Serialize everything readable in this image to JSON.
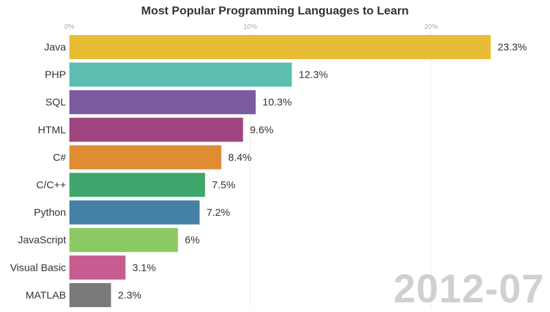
{
  "chart_data": {
    "type": "bar",
    "orientation": "horizontal",
    "title": "Most Popular Programming Languages to Learn",
    "period": "2012-07",
    "xlim": [
      0,
      25
    ],
    "ticks": [
      0,
      10,
      20
    ],
    "tick_labels": [
      "0%",
      "10%",
      "20%"
    ],
    "categories": [
      "Java",
      "PHP",
      "SQL",
      "HTML",
      "C#",
      "C/C++",
      "Python",
      "JavaScript",
      "Visual Basic",
      "MATLAB"
    ],
    "values": [
      23.3,
      12.3,
      10.3,
      9.6,
      8.4,
      7.5,
      7.2,
      6,
      3.1,
      2.3
    ],
    "value_labels": [
      "23.3%",
      "12.3%",
      "10.3%",
      "9.6%",
      "8.4%",
      "7.5%",
      "7.2%",
      "6%",
      "3.1%",
      "2.3%"
    ],
    "colors": [
      "#e8bc33",
      "#5dbfb0",
      "#7b5aa1",
      "#9e457f",
      "#e08c33",
      "#3ea76b",
      "#4581a6",
      "#8cc964",
      "#c65c90",
      "#7a7a7a"
    ],
    "grid": true
  }
}
